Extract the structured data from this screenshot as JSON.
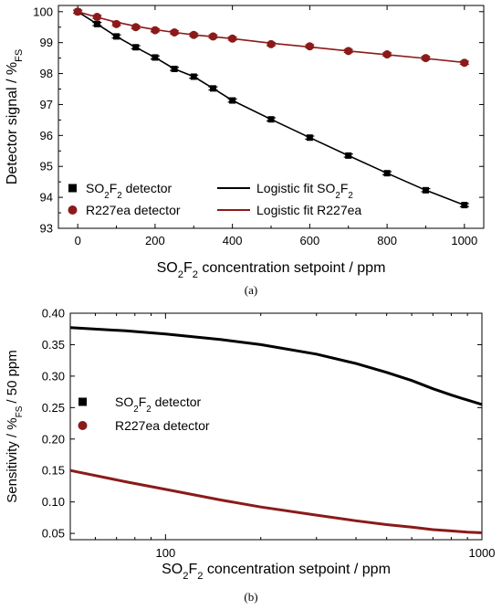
{
  "chart_data": [
    {
      "type": "scatter",
      "panel_label": "(a)",
      "ylabel_main": "Detector signal / %",
      "ylabel_sub": "FS",
      "xlabel_parts": [
        "SO",
        "2",
        "F",
        "2",
        " concentration setpoint / ppm"
      ],
      "xlim": [
        -50,
        1050
      ],
      "ylim": [
        93,
        100.2
      ],
      "x_ticks": [
        0,
        200,
        400,
        600,
        800,
        1000
      ],
      "x_tick_labels": [
        "0",
        "200",
        "400",
        "600",
        "800",
        "1000"
      ],
      "y_ticks": [
        93,
        94,
        95,
        96,
        97,
        98,
        99,
        100
      ],
      "y_tick_labels": [
        "93",
        "94",
        "95",
        "96",
        "97",
        "98",
        "99",
        "100"
      ],
      "legend_position": "bottom-left",
      "series": [
        {
          "key": "so2f2-points",
          "legend_parts": [
            "SO",
            "2",
            "F",
            "2",
            " detector"
          ],
          "marker": "square",
          "color": "#000000",
          "x": [
            0,
            50,
            100,
            150,
            200,
            250,
            300,
            350,
            400,
            500,
            600,
            700,
            800,
            900,
            1000
          ],
          "y": [
            100.0,
            99.6,
            99.2,
            98.85,
            98.52,
            98.15,
            97.9,
            97.52,
            97.13,
            96.52,
            95.93,
            95.35,
            94.78,
            94.23,
            93.75
          ],
          "error": [
            0.05,
            0.05,
            0.05,
            0.05,
            0.05,
            0.05,
            0.05,
            0.05,
            0.05,
            0.05,
            0.05,
            0.05,
            0.05,
            0.05,
            0.05
          ]
        },
        {
          "key": "r227ea-points",
          "legend_parts": [
            "R227ea detector"
          ],
          "marker": "circle",
          "color": "#8b1a1a",
          "x": [
            0,
            50,
            100,
            150,
            200,
            250,
            300,
            350,
            400,
            500,
            600,
            700,
            800,
            900,
            1000
          ],
          "y": [
            100.0,
            99.83,
            99.6,
            99.5,
            99.4,
            99.33,
            99.25,
            99.2,
            99.13,
            98.95,
            98.88,
            98.73,
            98.62,
            98.5,
            98.35
          ],
          "error": [
            0.05,
            0.05,
            0.05,
            0.05,
            0.05,
            0.05,
            0.05,
            0.05,
            0.05,
            0.05,
            0.05,
            0.05,
            0.05,
            0.05,
            0.05
          ]
        },
        {
          "key": "so2f2-fit",
          "legend_parts": [
            "Logistic fit SO",
            "2",
            "F",
            "2"
          ],
          "marker": "line",
          "color": "#000000",
          "x": [
            0,
            50,
            100,
            150,
            200,
            250,
            300,
            350,
            400,
            500,
            600,
            700,
            800,
            900,
            1000
          ],
          "y": [
            100.0,
            99.6,
            99.2,
            98.85,
            98.52,
            98.15,
            97.9,
            97.52,
            97.13,
            96.52,
            95.93,
            95.35,
            94.78,
            94.23,
            93.75
          ]
        },
        {
          "key": "r227ea-fit",
          "legend_parts": [
            "Logistic fit R227ea"
          ],
          "marker": "line",
          "color": "#8b1a1a",
          "x": [
            0,
            50,
            100,
            150,
            200,
            250,
            300,
            350,
            400,
            500,
            600,
            700,
            800,
            900,
            1000
          ],
          "y": [
            100.0,
            99.82,
            99.66,
            99.53,
            99.42,
            99.33,
            99.25,
            99.19,
            99.13,
            98.98,
            98.86,
            98.73,
            98.61,
            98.49,
            98.36
          ]
        }
      ]
    },
    {
      "type": "line",
      "panel_label": "(b)",
      "ylabel_main": "Sensitivity / %",
      "ylabel_sub": "FS",
      "ylabel_tail": "/ 50 ppm",
      "xlabel_parts": [
        "SO",
        "2",
        "F",
        "2",
        " concentration setpoint / ppm"
      ],
      "x_scale": "log",
      "xlim": [
        50,
        1000
      ],
      "ylim": [
        0.04,
        0.4
      ],
      "x_ticks": [
        100,
        1000
      ],
      "x_tick_labels": [
        "100",
        "1000"
      ],
      "y_ticks": [
        0.05,
        0.1,
        0.15,
        0.2,
        0.25,
        0.3,
        0.35,
        0.4
      ],
      "y_tick_labels": [
        "0.05",
        "0.10",
        "0.15",
        "0.20",
        "0.25",
        "0.30",
        "0.35",
        "0.40"
      ],
      "legend_position": "center-left",
      "series": [
        {
          "key": "so2f2-sensitivity",
          "legend_parts": [
            "SO",
            "2",
            "F",
            "2",
            " detector"
          ],
          "color": "#000000",
          "x": [
            50,
            75,
            100,
            150,
            200,
            300,
            400,
            500,
            600,
            700,
            800,
            900,
            1000
          ],
          "y": [
            0.377,
            0.372,
            0.367,
            0.358,
            0.35,
            0.335,
            0.32,
            0.306,
            0.293,
            0.28,
            0.27,
            0.262,
            0.255
          ]
        },
        {
          "key": "r227ea-sensitivity",
          "legend_parts": [
            "R227ea detector"
          ],
          "color": "#8b1a1a",
          "x": [
            50,
            75,
            100,
            150,
            200,
            300,
            400,
            500,
            600,
            700,
            800,
            900,
            1000
          ],
          "y": [
            0.15,
            0.132,
            0.12,
            0.103,
            0.092,
            0.079,
            0.07,
            0.064,
            0.06,
            0.056,
            0.054,
            0.052,
            0.051
          ]
        }
      ]
    }
  ]
}
